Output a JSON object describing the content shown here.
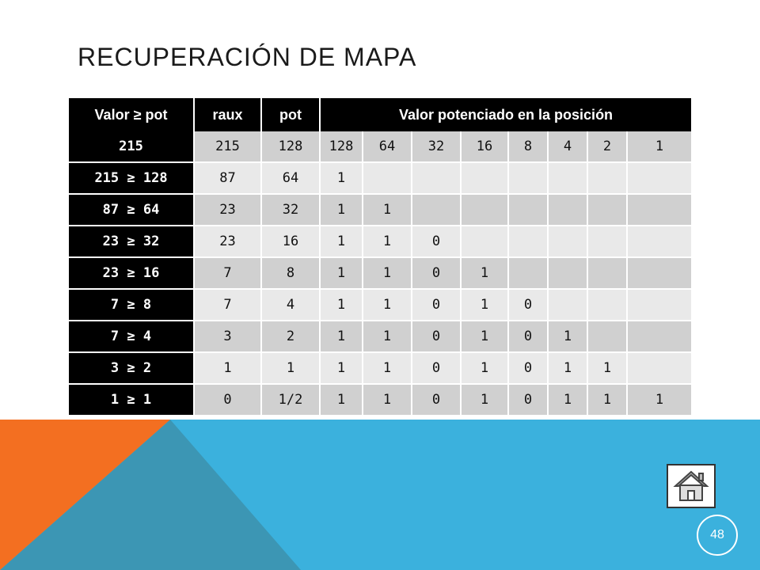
{
  "slide": {
    "title": "RECUPERACIÓN DE MAPA",
    "page_number": "48",
    "colors": {
      "orange": "#f36f21",
      "blue": "#3bb1dd",
      "dark_blue": "#3c96b4"
    }
  },
  "table": {
    "headers": [
      "Valor ≥ pot",
      "raux",
      "pot",
      "Valor potenciado en la posición"
    ],
    "rows": [
      [
        "215",
        "215",
        "128",
        "128",
        "64",
        "32",
        "16",
        "8",
        "4",
        "2",
        "1"
      ],
      [
        "215 ≥ 128",
        "87",
        "64",
        "1",
        "",
        "",
        "",
        "",
        "",
        "",
        ""
      ],
      [
        "87 ≥ 64",
        "23",
        "32",
        "1",
        "1",
        "",
        "",
        "",
        "",
        "",
        ""
      ],
      [
        "23 ≥ 32",
        "23",
        "16",
        "1",
        "1",
        "0",
        "",
        "",
        "",
        "",
        ""
      ],
      [
        "23 ≥ 16",
        "7",
        "8",
        "1",
        "1",
        "0",
        "1",
        "",
        "",
        "",
        ""
      ],
      [
        "7 ≥ 8",
        "7",
        "4",
        "1",
        "1",
        "0",
        "1",
        "0",
        "",
        "",
        ""
      ],
      [
        "7 ≥ 4",
        "3",
        "2",
        "1",
        "1",
        "0",
        "1",
        "0",
        "1",
        "",
        ""
      ],
      [
        "3 ≥ 2",
        "1",
        "1",
        "1",
        "1",
        "0",
        "1",
        "0",
        "1",
        "1",
        ""
      ],
      [
        "1 ≥ 1",
        "0",
        "1/2",
        "1",
        "1",
        "0",
        "1",
        "0",
        "1",
        "1",
        "1"
      ]
    ]
  },
  "nav": {
    "home_icon": "home-icon"
  }
}
